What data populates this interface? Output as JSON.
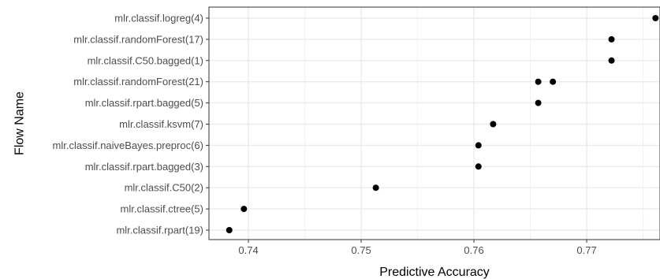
{
  "chart_data": {
    "type": "scatter",
    "title": "",
    "xlabel": "Predictive Accuracy",
    "ylabel": "Flow Name",
    "xlim": [
      0.7365,
      0.7765
    ],
    "x_ticks": [
      0.74,
      0.75,
      0.76,
      0.77
    ],
    "x_tick_labels": [
      "0.74",
      "0.75",
      "0.76",
      "0.77"
    ],
    "grid": true,
    "legend": "none",
    "point_color": "#000000",
    "categories": [
      "mlr.classif.logreg(4)",
      "mlr.classif.randomForest(17)",
      "mlr.classif.C50.bagged(1)",
      "mlr.classif.randomForest(21)",
      "mlr.classif.rpart.bagged(5)",
      "mlr.classif.ksvm(7)",
      "mlr.classif.naiveBayes.preproc(6)",
      "mlr.classif.rpart.bagged(3)",
      "mlr.classif.C50(2)",
      "mlr.classif.ctree(5)",
      "mlr.classif.rpart(19)"
    ],
    "points": [
      {
        "category": "mlr.classif.logreg(4)",
        "x": 0.7761
      },
      {
        "category": "mlr.classif.randomForest(17)",
        "x": 0.7722
      },
      {
        "category": "mlr.classif.C50.bagged(1)",
        "x": 0.7722
      },
      {
        "category": "mlr.classif.randomForest(21)",
        "x": 0.7657
      },
      {
        "category": "mlr.classif.randomForest(21)",
        "x": 0.767
      },
      {
        "category": "mlr.classif.rpart.bagged(5)",
        "x": 0.7657
      },
      {
        "category": "mlr.classif.ksvm(7)",
        "x": 0.7617
      },
      {
        "category": "mlr.classif.naiveBayes.preproc(6)",
        "x": 0.7604
      },
      {
        "category": "mlr.classif.rpart.bagged(3)",
        "x": 0.7604
      },
      {
        "category": "mlr.classif.C50(2)",
        "x": 0.7513
      },
      {
        "category": "mlr.classif.ctree(5)",
        "x": 0.7396
      },
      {
        "category": "mlr.classif.rpart(19)",
        "x": 0.7383
      }
    ]
  }
}
